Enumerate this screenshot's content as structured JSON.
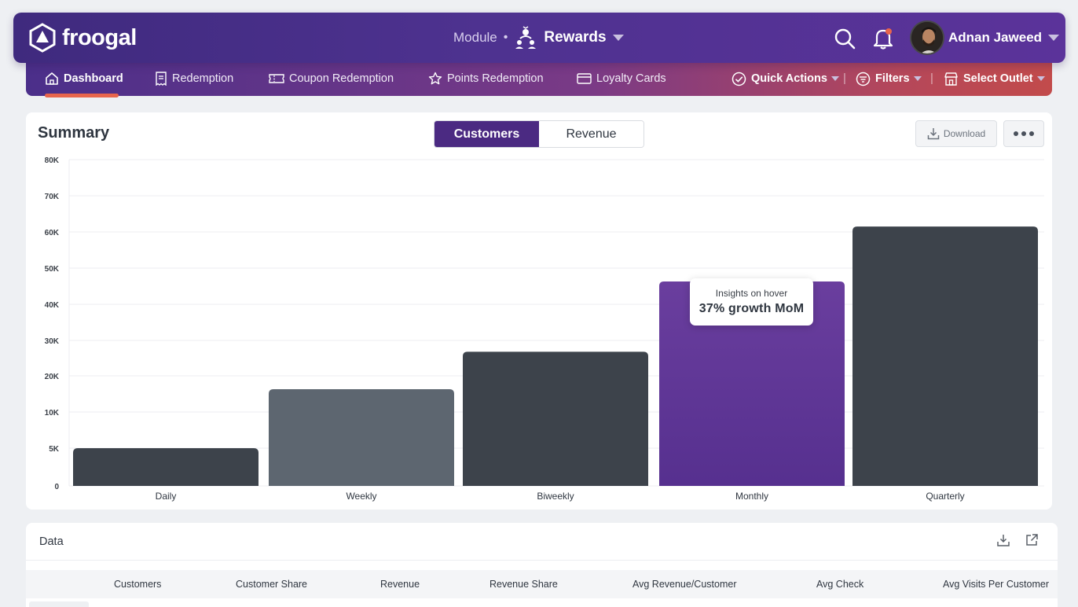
{
  "app": {
    "brand": "froogal"
  },
  "header": {
    "module_label": "Module",
    "module_name": "Rewards",
    "user_name": "Adnan Jaweed"
  },
  "nav": {
    "items": [
      {
        "label": "Dashboard"
      },
      {
        "label": "Redemption"
      },
      {
        "label": "Coupon Redemption"
      },
      {
        "label": "Points Redemption"
      },
      {
        "label": "Loyalty Cards"
      }
    ],
    "quick_actions": "Quick Actions",
    "filters": "Filters",
    "select_outlet": "Select Outlet"
  },
  "summary": {
    "title": "Summary",
    "toggle": {
      "customers": "Customers",
      "revenue": "Revenue"
    },
    "download_label": "Download",
    "tooltip": {
      "title": "Insights on hover",
      "value": "37% growth MoM"
    }
  },
  "chart_data": {
    "type": "bar",
    "categories": [
      "Daily",
      "Weekly",
      "Biweekly",
      "Monthly",
      "Quarterly"
    ],
    "values": [
      5000,
      16300,
      26800,
      46300,
      61500
    ],
    "y_ticks": [
      0,
      5000,
      10000,
      20000,
      30000,
      40000,
      50000,
      60000,
      70000,
      80000
    ],
    "y_tick_labels": [
      "0",
      "5K",
      "10K",
      "20K",
      "30K",
      "40K",
      "50K",
      "60K",
      "70K",
      "80K"
    ],
    "highlight_index": 3,
    "colors": [
      "#3d434b",
      "#5d6670",
      "#3d434b",
      "#5e3596",
      "#3d434b"
    ],
    "title": "Summary",
    "xlabel": "",
    "ylabel": ""
  },
  "data_table": {
    "title": "Data",
    "columns": [
      "Customers",
      "Customer Share",
      "Revenue",
      "Revenue Share",
      "Avg Revenue/Customer",
      "Avg Check",
      "Avg Visits Per Customer"
    ]
  }
}
